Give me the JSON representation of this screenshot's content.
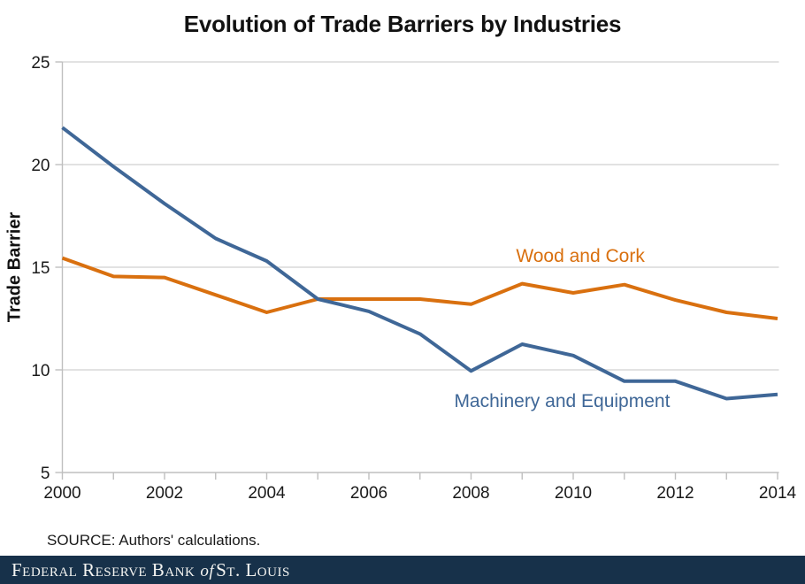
{
  "title": "Evolution of Trade Barriers by Industries",
  "source_note": "SOURCE: Authors' calculations.",
  "footer": {
    "name_part1": "Federal Reserve Bank",
    "name_part2": "of",
    "name_part3": "St. Louis",
    "bar_color": "#17314A"
  },
  "colors": {
    "gridline": "#D9D9D9",
    "axis_tick": "#BFBFBF",
    "tick_label": "#1a1a1a",
    "background": "#FFFFFF"
  },
  "chart_data": {
    "type": "line",
    "title": "Evolution of Trade Barriers by Industries",
    "xlabel": "",
    "ylabel": "Trade Barrier",
    "ylim": [
      5,
      25
    ],
    "ytick_step": 5,
    "yticks": [
      5,
      10,
      15,
      20,
      25
    ],
    "grid": true,
    "legend_position": "inline-labels",
    "x": [
      2000,
      2001,
      2002,
      2003,
      2004,
      2005,
      2006,
      2007,
      2008,
      2009,
      2010,
      2011,
      2012,
      2013,
      2014
    ],
    "x_major_tick_labels": [
      "2000",
      "2002",
      "2004",
      "2006",
      "2008",
      "2010",
      "2012",
      "2014"
    ],
    "x_minor_ticks_every_year": true,
    "series": [
      {
        "name": "Wood and Cork",
        "color": "#D9700F",
        "values": [
          15.45,
          14.55,
          14.5,
          13.65,
          12.8,
          13.45,
          13.45,
          13.45,
          13.2,
          14.2,
          13.75,
          14.15,
          13.4,
          12.8,
          12.5
        ],
        "label_anchor": {
          "x": 2008.88,
          "y": 15.25
        }
      },
      {
        "name": "Machinery and Equipment",
        "color": "#3F6797",
        "values": [
          21.8,
          19.9,
          18.1,
          16.4,
          15.3,
          13.45,
          12.85,
          11.75,
          9.95,
          11.25,
          10.7,
          9.45,
          9.45,
          8.6,
          8.8
        ],
        "label_anchor": {
          "x": 2007.67,
          "y": 8.2
        }
      }
    ]
  }
}
